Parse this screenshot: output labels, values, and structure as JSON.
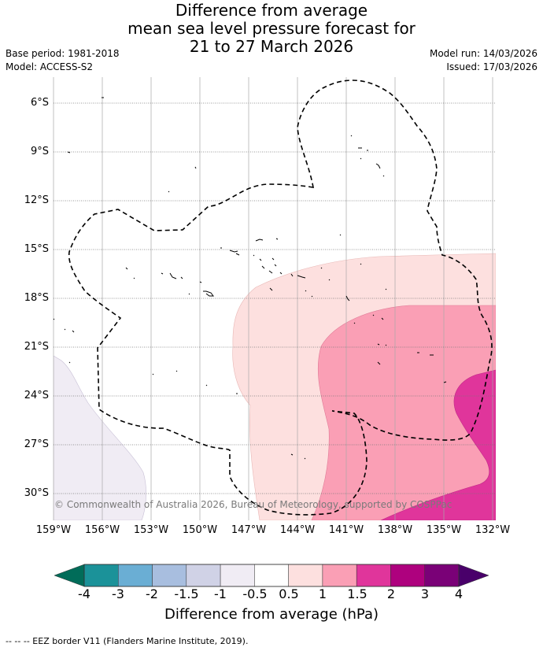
{
  "header": {
    "title_line1": "Difference from average",
    "title_line2": "mean sea level pressure forecast for",
    "title_line3": "21 to 27 March 2026",
    "base_period": "Base period: 1981-2018",
    "model": "Model: ACCESS-S2",
    "model_run": "Model run: 14/03/2026",
    "issued": "Issued: 17/03/2026"
  },
  "map": {
    "lat_labels": [
      "6°S",
      "9°S",
      "12°S",
      "15°S",
      "18°S",
      "21°S",
      "24°S",
      "27°S",
      "30°S"
    ],
    "lon_labels": [
      "159°W",
      "156°W",
      "153°W",
      "150°W",
      "147°W",
      "144°W",
      "141°W",
      "138°W",
      "135°W",
      "132°W"
    ],
    "copyright": "© Commonwealth of Australia 2026, Bureau of Meteorology, supported by COSPPac",
    "border_name": "EEZ border"
  },
  "colorbar": {
    "ticks": [
      "-4",
      "-3",
      "-2",
      "-1.5",
      "-1",
      "-0.5",
      "0.5",
      "1",
      "1.5",
      "2",
      "3",
      "4"
    ],
    "colors": [
      "#1b9299",
      "#6aaed4",
      "#a8bedf",
      "#d0d2e6",
      "#f0ecf4",
      "#ffffff",
      "#fde0df",
      "#fa9fb5",
      "#e0359b",
      "#ae017e",
      "#7a0177"
    ],
    "under_color": "#016c59",
    "over_color": "#49006a",
    "title": "Difference from average (hPa)"
  },
  "footnote": "-- -- -- EEZ border V11 (Flanders Marine Institute, 2019)."
}
